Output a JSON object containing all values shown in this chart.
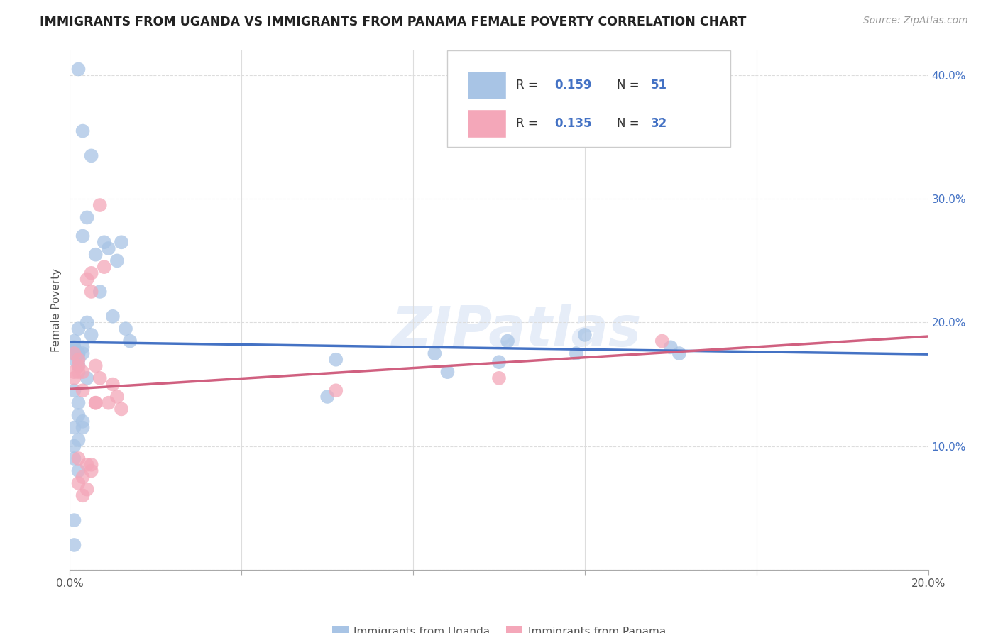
{
  "title": "IMMIGRANTS FROM UGANDA VS IMMIGRANTS FROM PANAMA FEMALE POVERTY CORRELATION CHART",
  "source": "Source: ZipAtlas.com",
  "ylabel": "Female Poverty",
  "xlim": [
    0.0,
    0.2
  ],
  "ylim": [
    0.0,
    0.42
  ],
  "uganda_color": "#a8c4e5",
  "panama_color": "#f4a7b9",
  "uganda_line_color": "#4472c4",
  "panama_line_color": "#d06080",
  "watermark": "ZIPatlas",
  "uganda_scatter_x": [
    0.002,
    0.003,
    0.004,
    0.005,
    0.006,
    0.007,
    0.008,
    0.009,
    0.01,
    0.011,
    0.012,
    0.013,
    0.014,
    0.001,
    0.002,
    0.003,
    0.004,
    0.005,
    0.001,
    0.002,
    0.003,
    0.001,
    0.002,
    0.001,
    0.002,
    0.003,
    0.004,
    0.001,
    0.002,
    0.001,
    0.002,
    0.001,
    0.002,
    0.003,
    0.001,
    0.002,
    0.003,
    0.001,
    0.002,
    0.001,
    0.001,
    0.06,
    0.062,
    0.085,
    0.088,
    0.1,
    0.102,
    0.118,
    0.12,
    0.14,
    0.142
  ],
  "uganda_scatter_y": [
    0.405,
    0.355,
    0.285,
    0.335,
    0.255,
    0.225,
    0.265,
    0.26,
    0.205,
    0.25,
    0.265,
    0.195,
    0.185,
    0.185,
    0.175,
    0.175,
    0.2,
    0.19,
    0.18,
    0.175,
    0.27,
    0.175,
    0.17,
    0.18,
    0.195,
    0.18,
    0.155,
    0.17,
    0.165,
    0.145,
    0.135,
    0.115,
    0.125,
    0.115,
    0.1,
    0.105,
    0.12,
    0.09,
    0.08,
    0.04,
    0.02,
    0.14,
    0.17,
    0.175,
    0.16,
    0.168,
    0.185,
    0.175,
    0.19,
    0.18,
    0.175
  ],
  "panama_scatter_x": [
    0.001,
    0.002,
    0.003,
    0.005,
    0.006,
    0.007,
    0.008,
    0.009,
    0.01,
    0.011,
    0.012,
    0.001,
    0.002,
    0.003,
    0.004,
    0.005,
    0.006,
    0.007,
    0.002,
    0.003,
    0.004,
    0.005,
    0.006,
    0.002,
    0.003,
    0.004,
    0.005,
    0.001,
    0.002,
    0.062,
    0.1,
    0.138
  ],
  "panama_scatter_y": [
    0.175,
    0.17,
    0.16,
    0.24,
    0.165,
    0.295,
    0.245,
    0.135,
    0.15,
    0.14,
    0.13,
    0.16,
    0.165,
    0.145,
    0.235,
    0.225,
    0.135,
    0.155,
    0.09,
    0.075,
    0.085,
    0.085,
    0.135,
    0.07,
    0.06,
    0.065,
    0.08,
    0.155,
    0.16,
    0.145,
    0.155,
    0.185
  ]
}
